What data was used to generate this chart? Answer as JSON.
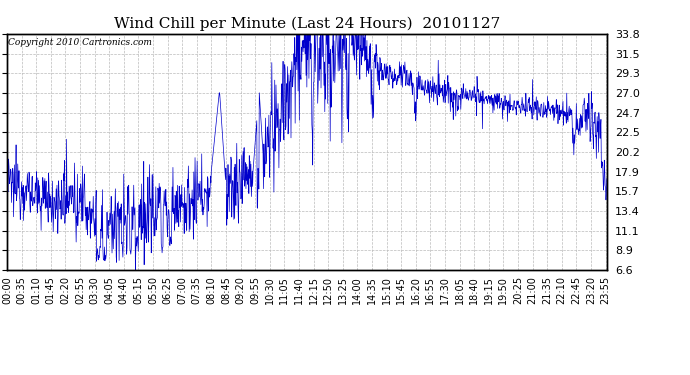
{
  "title": "Wind Chill per Minute (Last 24 Hours)  20101127",
  "copyright": "Copyright 2010 Cartronics.com",
  "line_color": "#0000cc",
  "bg_color": "#ffffff",
  "plot_bg_color": "#ffffff",
  "yticks": [
    6.6,
    8.9,
    11.1,
    13.4,
    15.7,
    17.9,
    20.2,
    22.5,
    24.7,
    27.0,
    29.3,
    31.5,
    33.8
  ],
  "ymin": 6.6,
  "ymax": 33.8,
  "xtick_labels": [
    "00:00",
    "00:35",
    "01:10",
    "01:45",
    "02:20",
    "02:55",
    "03:30",
    "04:05",
    "04:40",
    "05:15",
    "05:50",
    "06:25",
    "07:00",
    "07:35",
    "08:10",
    "08:45",
    "09:20",
    "09:55",
    "10:30",
    "11:05",
    "11:40",
    "12:15",
    "12:50",
    "13:25",
    "14:00",
    "14:35",
    "15:10",
    "15:45",
    "16:20",
    "16:55",
    "17:30",
    "18:05",
    "18:40",
    "19:15",
    "19:50",
    "20:25",
    "21:00",
    "21:35",
    "22:10",
    "22:45",
    "23:20",
    "23:55"
  ],
  "grid_color": "#bbbbbb",
  "title_fontsize": 11,
  "axis_fontsize": 7,
  "copyright_fontsize": 6.5
}
